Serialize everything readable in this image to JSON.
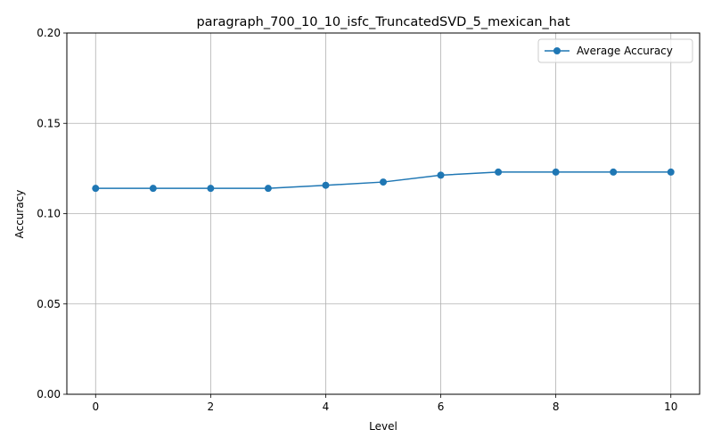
{
  "chart_data": {
    "type": "line",
    "title": "paragraph_700_10_10_isfc_TruncatedSVD_5_mexican_hat",
    "xlabel": "Level",
    "ylabel": "Accuracy",
    "xlim": [
      -0.5,
      10.5
    ],
    "ylim": [
      0,
      0.2
    ],
    "xticks": [
      0,
      2,
      4,
      6,
      8,
      10
    ],
    "xtick_labels": [
      "0",
      "2",
      "4",
      "6",
      "8",
      "10"
    ],
    "yticks": [
      0,
      0.05,
      0.1,
      0.15,
      0.2
    ],
    "ytick_labels": [
      "0.00",
      "0.05",
      "0.10",
      "0.15",
      "0.20"
    ],
    "grid": true,
    "legend_position": "top-right",
    "series": [
      {
        "name": "Average Accuracy",
        "color": "#1f77b4",
        "marker": "circle",
        "x": [
          0,
          1,
          2,
          3,
          4,
          5,
          6,
          7,
          8,
          9,
          10
        ],
        "y": [
          0.114,
          0.114,
          0.114,
          0.114,
          0.1157,
          0.1175,
          0.1213,
          0.123,
          0.123,
          0.123,
          0.123
        ]
      }
    ]
  }
}
